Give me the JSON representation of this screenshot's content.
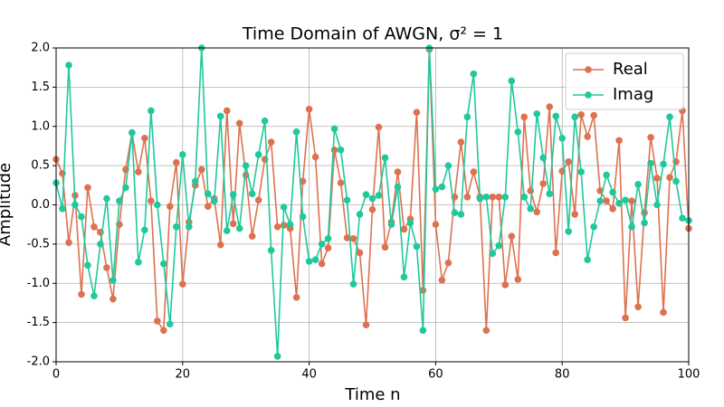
{
  "chart_data": {
    "type": "line",
    "title": "Time Domain of AWGN, σ² = 1",
    "xlabel": "Time n",
    "ylabel": "Amplitude",
    "x": [
      0,
      1,
      2,
      3,
      4,
      5,
      6,
      7,
      8,
      9,
      10,
      11,
      12,
      13,
      14,
      15,
      16,
      17,
      18,
      19,
      20,
      21,
      22,
      23,
      24,
      25,
      26,
      27,
      28,
      29,
      30,
      31,
      32,
      33,
      34,
      35,
      36,
      37,
      38,
      39,
      40,
      41,
      42,
      43,
      44,
      45,
      46,
      47,
      48,
      49,
      50,
      51,
      52,
      53,
      54,
      55,
      56,
      57,
      58,
      59,
      60,
      61,
      62,
      63,
      64,
      65,
      66,
      67,
      68,
      69,
      70,
      71,
      72,
      73,
      74,
      75,
      76,
      77,
      78,
      79,
      80,
      81,
      82,
      83,
      84,
      85,
      86,
      87,
      88,
      89,
      90,
      91,
      92,
      93,
      94,
      95,
      96,
      97,
      98,
      99,
      100
    ],
    "series": [
      {
        "name": "Real",
        "color": "#dd7250",
        "values": [
          0.58,
          0.4,
          -0.48,
          0.12,
          -1.14,
          0.22,
          -0.28,
          -0.35,
          -0.8,
          -1.2,
          -0.25,
          0.45,
          0.92,
          0.42,
          0.85,
          0.05,
          -1.48,
          -1.6,
          -0.02,
          0.54,
          -1.01,
          -0.22,
          0.25,
          0.45,
          -0.02,
          0.08,
          -0.51,
          1.2,
          -0.24,
          1.04,
          0.38,
          -0.4,
          0.06,
          0.58,
          0.8,
          -0.28,
          -0.26,
          -0.3,
          -1.18,
          0.3,
          1.22,
          0.61,
          -0.75,
          -0.55,
          0.7,
          0.28,
          -0.42,
          -0.43,
          -0.61,
          -1.53,
          -0.06,
          0.99,
          -0.54,
          -0.22,
          0.42,
          -0.31,
          -0.18,
          1.18,
          -1.09,
          1.98,
          -0.25,
          -0.96,
          -0.74,
          0.1,
          0.8,
          0.1,
          0.42,
          0.1,
          -1.6,
          0.1,
          0.1,
          -1.02,
          -0.4,
          -0.95,
          1.12,
          0.18,
          -0.09,
          0.27,
          1.25,
          -0.61,
          0.43,
          0.55,
          -0.12,
          1.15,
          0.87,
          1.14,
          0.18,
          0.05,
          -0.05,
          0.82,
          -1.44,
          0.05,
          -1.3,
          -0.1,
          0.86,
          0.34,
          -1.37,
          0.35,
          0.55,
          1.2,
          -0.3
        ]
      },
      {
        "name": "Imag",
        "color": "#1fc99c",
        "values": [
          0.28,
          -0.05,
          1.78,
          0.0,
          -0.15,
          -0.77,
          -1.16,
          -0.5,
          0.08,
          -0.96,
          0.05,
          0.22,
          0.92,
          -0.73,
          -0.32,
          1.2,
          0.0,
          -0.75,
          -1.52,
          -0.28,
          0.64,
          -0.28,
          0.3,
          2.0,
          0.14,
          0.05,
          1.13,
          -0.33,
          0.13,
          -0.3,
          0.5,
          0.14,
          0.64,
          1.07,
          -0.58,
          -1.93,
          -0.03,
          -0.25,
          0.93,
          -0.15,
          -0.72,
          -0.7,
          -0.5,
          -0.43,
          0.97,
          0.7,
          0.06,
          -1.01,
          -0.12,
          0.13,
          0.08,
          0.12,
          0.6,
          -0.25,
          0.23,
          -0.92,
          -0.23,
          -0.53,
          -1.6,
          2.0,
          0.2,
          0.23,
          0.5,
          -0.1,
          -0.12,
          1.12,
          1.67,
          0.08,
          0.1,
          -0.62,
          -0.52,
          0.1,
          1.58,
          0.93,
          0.1,
          -0.05,
          1.16,
          0.6,
          0.14,
          1.13,
          0.85,
          -0.34,
          1.12,
          0.42,
          -0.7,
          -0.28,
          0.05,
          0.38,
          0.16,
          0.02,
          0.06,
          -0.28,
          0.26,
          -0.23,
          0.53,
          0.0,
          0.52,
          1.12,
          0.3,
          -0.17,
          -0.2
        ]
      }
    ],
    "xlim": [
      0,
      100
    ],
    "xticks": [
      0,
      20,
      40,
      60,
      80,
      100
    ],
    "ylim": [
      -2,
      2
    ],
    "yticks": [
      {
        "value": -2,
        "label": "-2.0"
      },
      -1.5,
      {
        "value": -1,
        "label": "-1.0"
      },
      -0.5,
      {
        "value": 0,
        "label": "0.0"
      },
      0.5,
      {
        "value": 1,
        "label": "1.0"
      },
      1.5,
      {
        "value": 2,
        "label": "2.0"
      }
    ],
    "grid": true,
    "legend": "upper right"
  }
}
